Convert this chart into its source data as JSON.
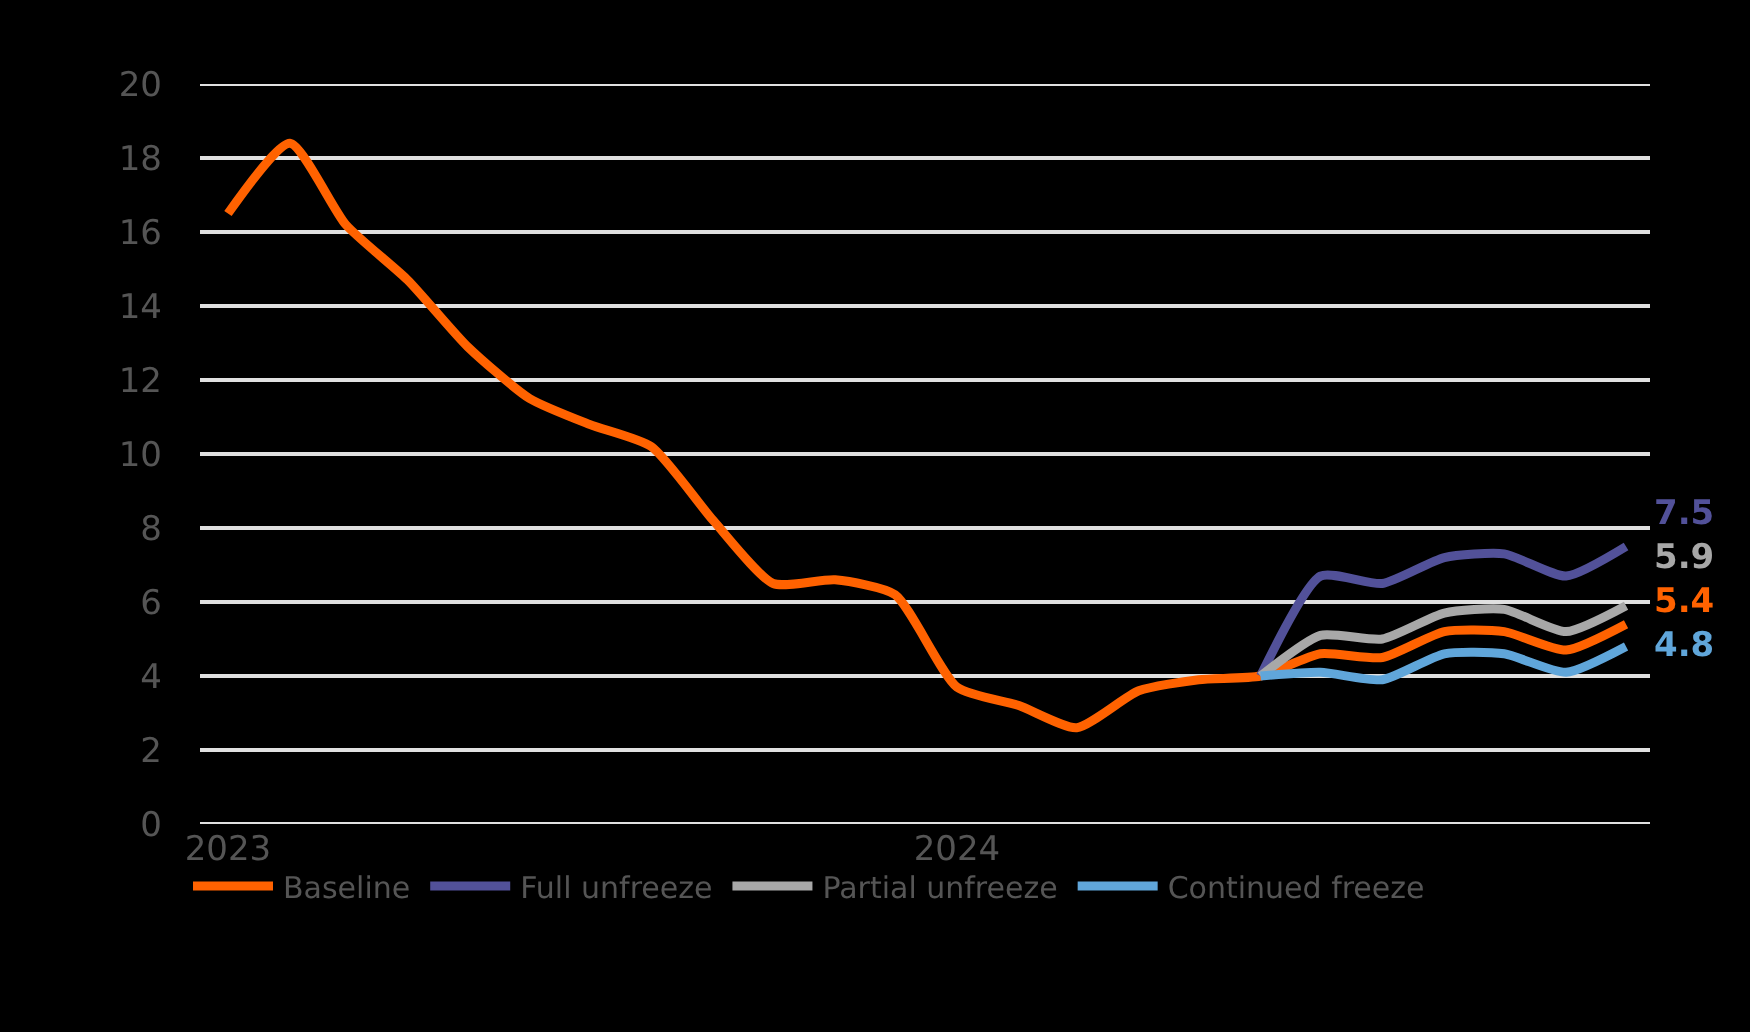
{
  "chart_data": {
    "type": "line",
    "x": [
      "2023-01",
      "2023-02",
      "2023-03",
      "2023-04",
      "2023-05",
      "2023-06",
      "2023-07",
      "2023-08",
      "2023-09",
      "2023-10",
      "2023-11",
      "2023-12",
      "2024-01",
      "2024-02",
      "2024-03",
      "2024-04",
      "2024-05",
      "2024-06",
      "2024-07",
      "2024-08",
      "2024-09",
      "2024-10",
      "2024-11",
      "2024-12"
    ],
    "series": [
      {
        "name": "Baseline",
        "color": "#ff6200",
        "values": [
          16.5,
          18.4,
          16.2,
          14.7,
          12.9,
          11.5,
          10.8,
          10.2,
          8.2,
          6.5,
          6.6,
          6.2,
          3.7,
          3.2,
          2.6,
          3.6,
          3.9,
          4.0,
          4.6,
          4.5,
          5.2,
          5.2,
          4.7,
          5.4
        ]
      },
      {
        "name": "Full unfreeze",
        "color": "#525199",
        "x": [
          "2024-06",
          "2024-07",
          "2024-08",
          "2024-09",
          "2024-10",
          "2024-11",
          "2024-12"
        ],
        "values": [
          4.0,
          6.7,
          6.5,
          7.2,
          7.3,
          6.7,
          7.5
        ]
      },
      {
        "name": "Partial unfreeze",
        "color": "#a8a8a8",
        "x": [
          "2024-06",
          "2024-07",
          "2024-08",
          "2024-09",
          "2024-10",
          "2024-11",
          "2024-12"
        ],
        "values": [
          4.0,
          5.1,
          5.0,
          5.7,
          5.8,
          5.2,
          5.9
        ]
      },
      {
        "name": "Continued freeze",
        "color": "#60a6da",
        "x": [
          "2024-06",
          "2024-07",
          "2024-08",
          "2024-09",
          "2024-10",
          "2024-11",
          "2024-12"
        ],
        "values": [
          4.0,
          4.1,
          3.9,
          4.6,
          4.6,
          4.1,
          4.8
        ]
      }
    ],
    "annotations": [
      {
        "text": "7.5",
        "x": "2024-12",
        "y": 7.5
      },
      {
        "text": "5.9",
        "x": "2024-12",
        "y": 5.9
      },
      {
        "text": "5.4",
        "x": "2024-12",
        "y": 5.4
      },
      {
        "text": "4.8",
        "x": "2024-12",
        "y": 4.8
      }
    ],
    "xlim": [
      "2022-12-18",
      "2024-12-13"
    ],
    "xticks": [
      {
        "value": "2023-01",
        "label": "2023"
      },
      {
        "value": "2024-01",
        "label": "2024"
      }
    ],
    "ylim": [
      0,
      20
    ],
    "yticks": [
      0,
      2,
      4,
      6,
      8,
      10,
      12,
      14,
      16,
      18,
      20
    ],
    "grid": "y",
    "legend": "bottom",
    "marker": "none",
    "line_style": "solid"
  }
}
